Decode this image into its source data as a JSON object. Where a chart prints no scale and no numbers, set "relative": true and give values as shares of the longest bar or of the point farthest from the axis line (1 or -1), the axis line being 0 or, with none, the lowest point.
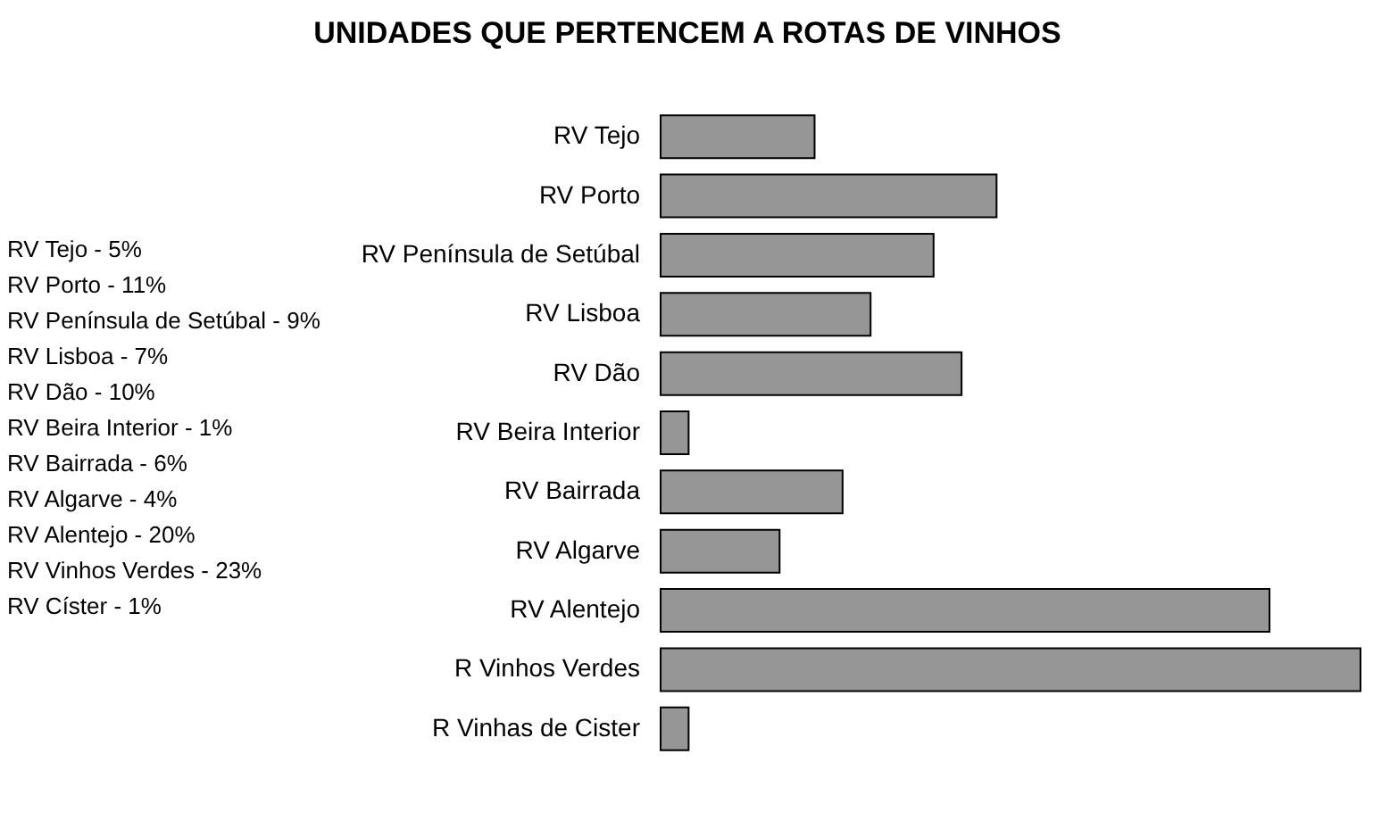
{
  "chart_data": {
    "type": "bar",
    "orientation": "horizontal",
    "title": "UNIDADES QUE PERTENCEM A ROTAS DE VINHOS",
    "categories": [
      "RV Tejo",
      "RV Porto",
      "RV Península de Setúbal",
      "RV Lisboa",
      "RV Dão",
      "RV Beira Interior",
      "RV Bairrada",
      "RV Algarve",
      "RV Alentejo",
      "R Vinhos Verdes",
      "R Vinhas de Cister"
    ],
    "values": [
      0.22,
      0.48,
      0.39,
      0.3,
      0.43,
      0.04,
      0.26,
      0.17,
      0.87,
      1,
      0.04
    ],
    "relative": true,
    "color": "#969696",
    "annotations": [
      "RV Tejo - 5%",
      "RV Porto - 11%",
      "RV Península de Setúbal - 9%",
      "RV Lisboa - 7%",
      "RV Dão - 10%",
      "RV Beira Interior - 1%",
      "RV Bairrada - 6%",
      "RV Algarve - 4%",
      "RV Alentejo - 20%",
      "RV Vinhos Verdes - 23%",
      "RV Císter - 1%"
    ]
  }
}
